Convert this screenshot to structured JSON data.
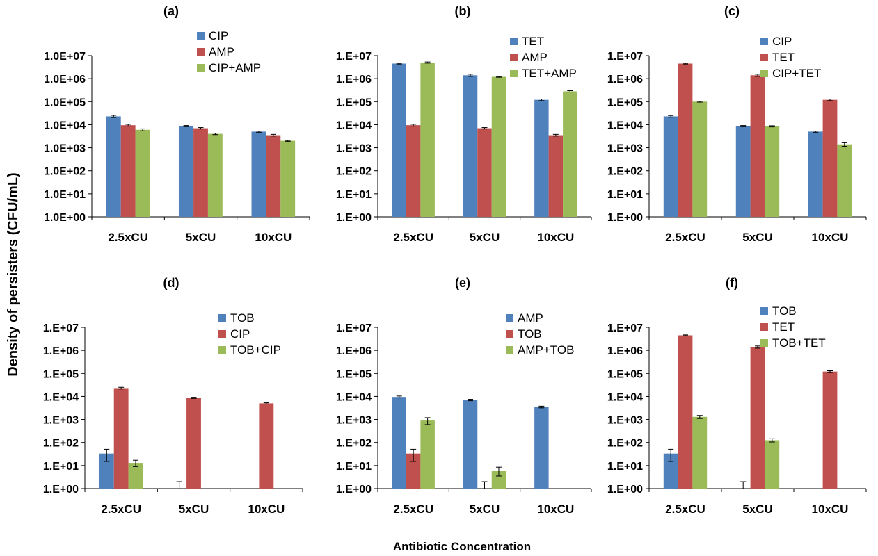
{
  "figure": {
    "ylabel": "Density of persisters (CFU/mL)",
    "xlabel": "Antibiotic Concentration"
  },
  "colors": {
    "blue": "#4f81bd",
    "red": "#c0504d",
    "green": "#9bbb59"
  },
  "chart_data": [
    {
      "id": "a",
      "type": "bar",
      "title": "(a)",
      "yscale": "log",
      "ylim": [
        1,
        10000000
      ],
      "yticks": [
        "1.0E+00",
        "1.0E+01",
        "1.0E+02",
        "1.0E+03",
        "1.0E+04",
        "1.0E+05",
        "1.0E+06",
        "1.0E+07"
      ],
      "categories": [
        "2.5xCU",
        "5xCU",
        "10xCU"
      ],
      "legend_position": "top-right",
      "series": [
        {
          "name": "CIP",
          "color": "#4f81bd",
          "values": [
            23000,
            8700,
            5000
          ],
          "errors": [
            2500,
            500,
            300
          ]
        },
        {
          "name": "AMP",
          "color": "#c0504d",
          "values": [
            9500,
            7000,
            3500
          ],
          "errors": [
            900,
            500,
            300
          ]
        },
        {
          "name": "CIP+AMP",
          "color": "#9bbb59",
          "values": [
            6000,
            4000,
            2000
          ],
          "errors": [
            600,
            300,
            100
          ]
        }
      ]
    },
    {
      "id": "b",
      "type": "bar",
      "title": "(b)",
      "yscale": "log",
      "ylim": [
        1,
        10000000
      ],
      "yticks": [
        "1.E+00",
        "1.E+01",
        "1.E+02",
        "1.E+03",
        "1.E+04",
        "1.E+05",
        "1.E+06",
        "1.E+07"
      ],
      "categories": [
        "2.5xCU",
        "5xCU",
        "10xCU"
      ],
      "legend_position": "top-right",
      "series": [
        {
          "name": "TET",
          "color": "#4f81bd",
          "values": [
            4500000,
            1400000,
            120000
          ],
          "errors": [
            200000,
            150000,
            10000
          ]
        },
        {
          "name": "AMP",
          "color": "#c0504d",
          "values": [
            9500,
            7000,
            3500
          ],
          "errors": [
            900,
            500,
            300
          ]
        },
        {
          "name": "TET+AMP",
          "color": "#9bbb59",
          "values": [
            5000000,
            1200000,
            280000
          ],
          "errors": [
            300000,
            50000,
            20000
          ]
        }
      ]
    },
    {
      "id": "c",
      "type": "bar",
      "title": "(c)",
      "yscale": "log",
      "ylim": [
        1,
        10000000
      ],
      "yticks": [
        "1.E+00",
        "1.E+01",
        "1.E+02",
        "1.E+03",
        "1.E+04",
        "1.E+05",
        "1.E+06",
        "1.E+07"
      ],
      "categories": [
        "2.5xCU",
        "5xCU",
        "10xCU"
      ],
      "legend_position": "top-right",
      "series": [
        {
          "name": "CIP",
          "color": "#4f81bd",
          "values": [
            23000,
            8700,
            5000
          ],
          "errors": [
            2000,
            500,
            300
          ]
        },
        {
          "name": "TET",
          "color": "#c0504d",
          "values": [
            4500000,
            1400000,
            120000
          ],
          "errors": [
            200000,
            150000,
            10000
          ]
        },
        {
          "name": "CIP+TET",
          "color": "#9bbb59",
          "values": [
            100000,
            8500,
            1400
          ],
          "errors": [
            5000,
            500,
            250
          ]
        }
      ]
    },
    {
      "id": "d",
      "type": "bar",
      "title": "(d)",
      "yscale": "log",
      "ylim": [
        1,
        10000000
      ],
      "yticks": [
        "1.E+00",
        "1.E+01",
        "1.E+02",
        "1.E+03",
        "1.E+04",
        "1.E+05",
        "1.E+06",
        "1.E+07"
      ],
      "categories": [
        "2.5xCU",
        "5xCU",
        "10xCU"
      ],
      "legend_position": "top-right",
      "series": [
        {
          "name": "TOB",
          "color": "#4f81bd",
          "values": [
            33,
            1,
            null
          ],
          "errors": [
            18,
            1,
            null
          ]
        },
        {
          "name": "CIP",
          "color": "#c0504d",
          "values": [
            23000,
            8700,
            5000
          ],
          "errors": [
            2000,
            500,
            300
          ]
        },
        {
          "name": "TOB+CIP",
          "color": "#9bbb59",
          "values": [
            13,
            null,
            null
          ],
          "errors": [
            4,
            null,
            null
          ]
        }
      ]
    },
    {
      "id": "e",
      "type": "bar",
      "title": "(e)",
      "yscale": "log",
      "ylim": [
        1,
        10000000
      ],
      "yticks": [
        "1.E+00",
        "1.E+01",
        "1.E+02",
        "1.E+03",
        "1.E+04",
        "1.E+05",
        "1.E+06",
        "1.E+07"
      ],
      "categories": [
        "2.5xCU",
        "5xCU",
        "10xCU"
      ],
      "legend_position": "top-right",
      "series": [
        {
          "name": "AMP",
          "color": "#4f81bd",
          "values": [
            9500,
            7000,
            3500
          ],
          "errors": [
            900,
            500,
            300
          ]
        },
        {
          "name": "TOB",
          "color": "#c0504d",
          "values": [
            33,
            1,
            null
          ],
          "errors": [
            18,
            1,
            null
          ]
        },
        {
          "name": "AMP+TOB",
          "color": "#9bbb59",
          "values": [
            900,
            6,
            null
          ],
          "errors": [
            300,
            2.5,
            null
          ]
        }
      ]
    },
    {
      "id": "f",
      "type": "bar",
      "title": "(f)",
      "yscale": "log",
      "ylim": [
        1,
        10000000
      ],
      "yticks": [
        "1.E+00",
        "1.E+01",
        "1.E+02",
        "1.E+03",
        "1.E+04",
        "1.E+05",
        "1.E+06",
        "1.E+07"
      ],
      "categories": [
        "2.5xCU",
        "5xCU",
        "10xCU"
      ],
      "legend_position": "top-right",
      "series": [
        {
          "name": "TOB",
          "color": "#4f81bd",
          "values": [
            33,
            1,
            null
          ],
          "errors": [
            18,
            1,
            null
          ]
        },
        {
          "name": "TET",
          "color": "#c0504d",
          "values": [
            4500000,
            1400000,
            120000
          ],
          "errors": [
            200000,
            150000,
            10000
          ]
        },
        {
          "name": "TOB+TET",
          "color": "#9bbb59",
          "values": [
            1300,
            125,
            null
          ],
          "errors": [
            200,
            20,
            null
          ]
        }
      ]
    }
  ]
}
